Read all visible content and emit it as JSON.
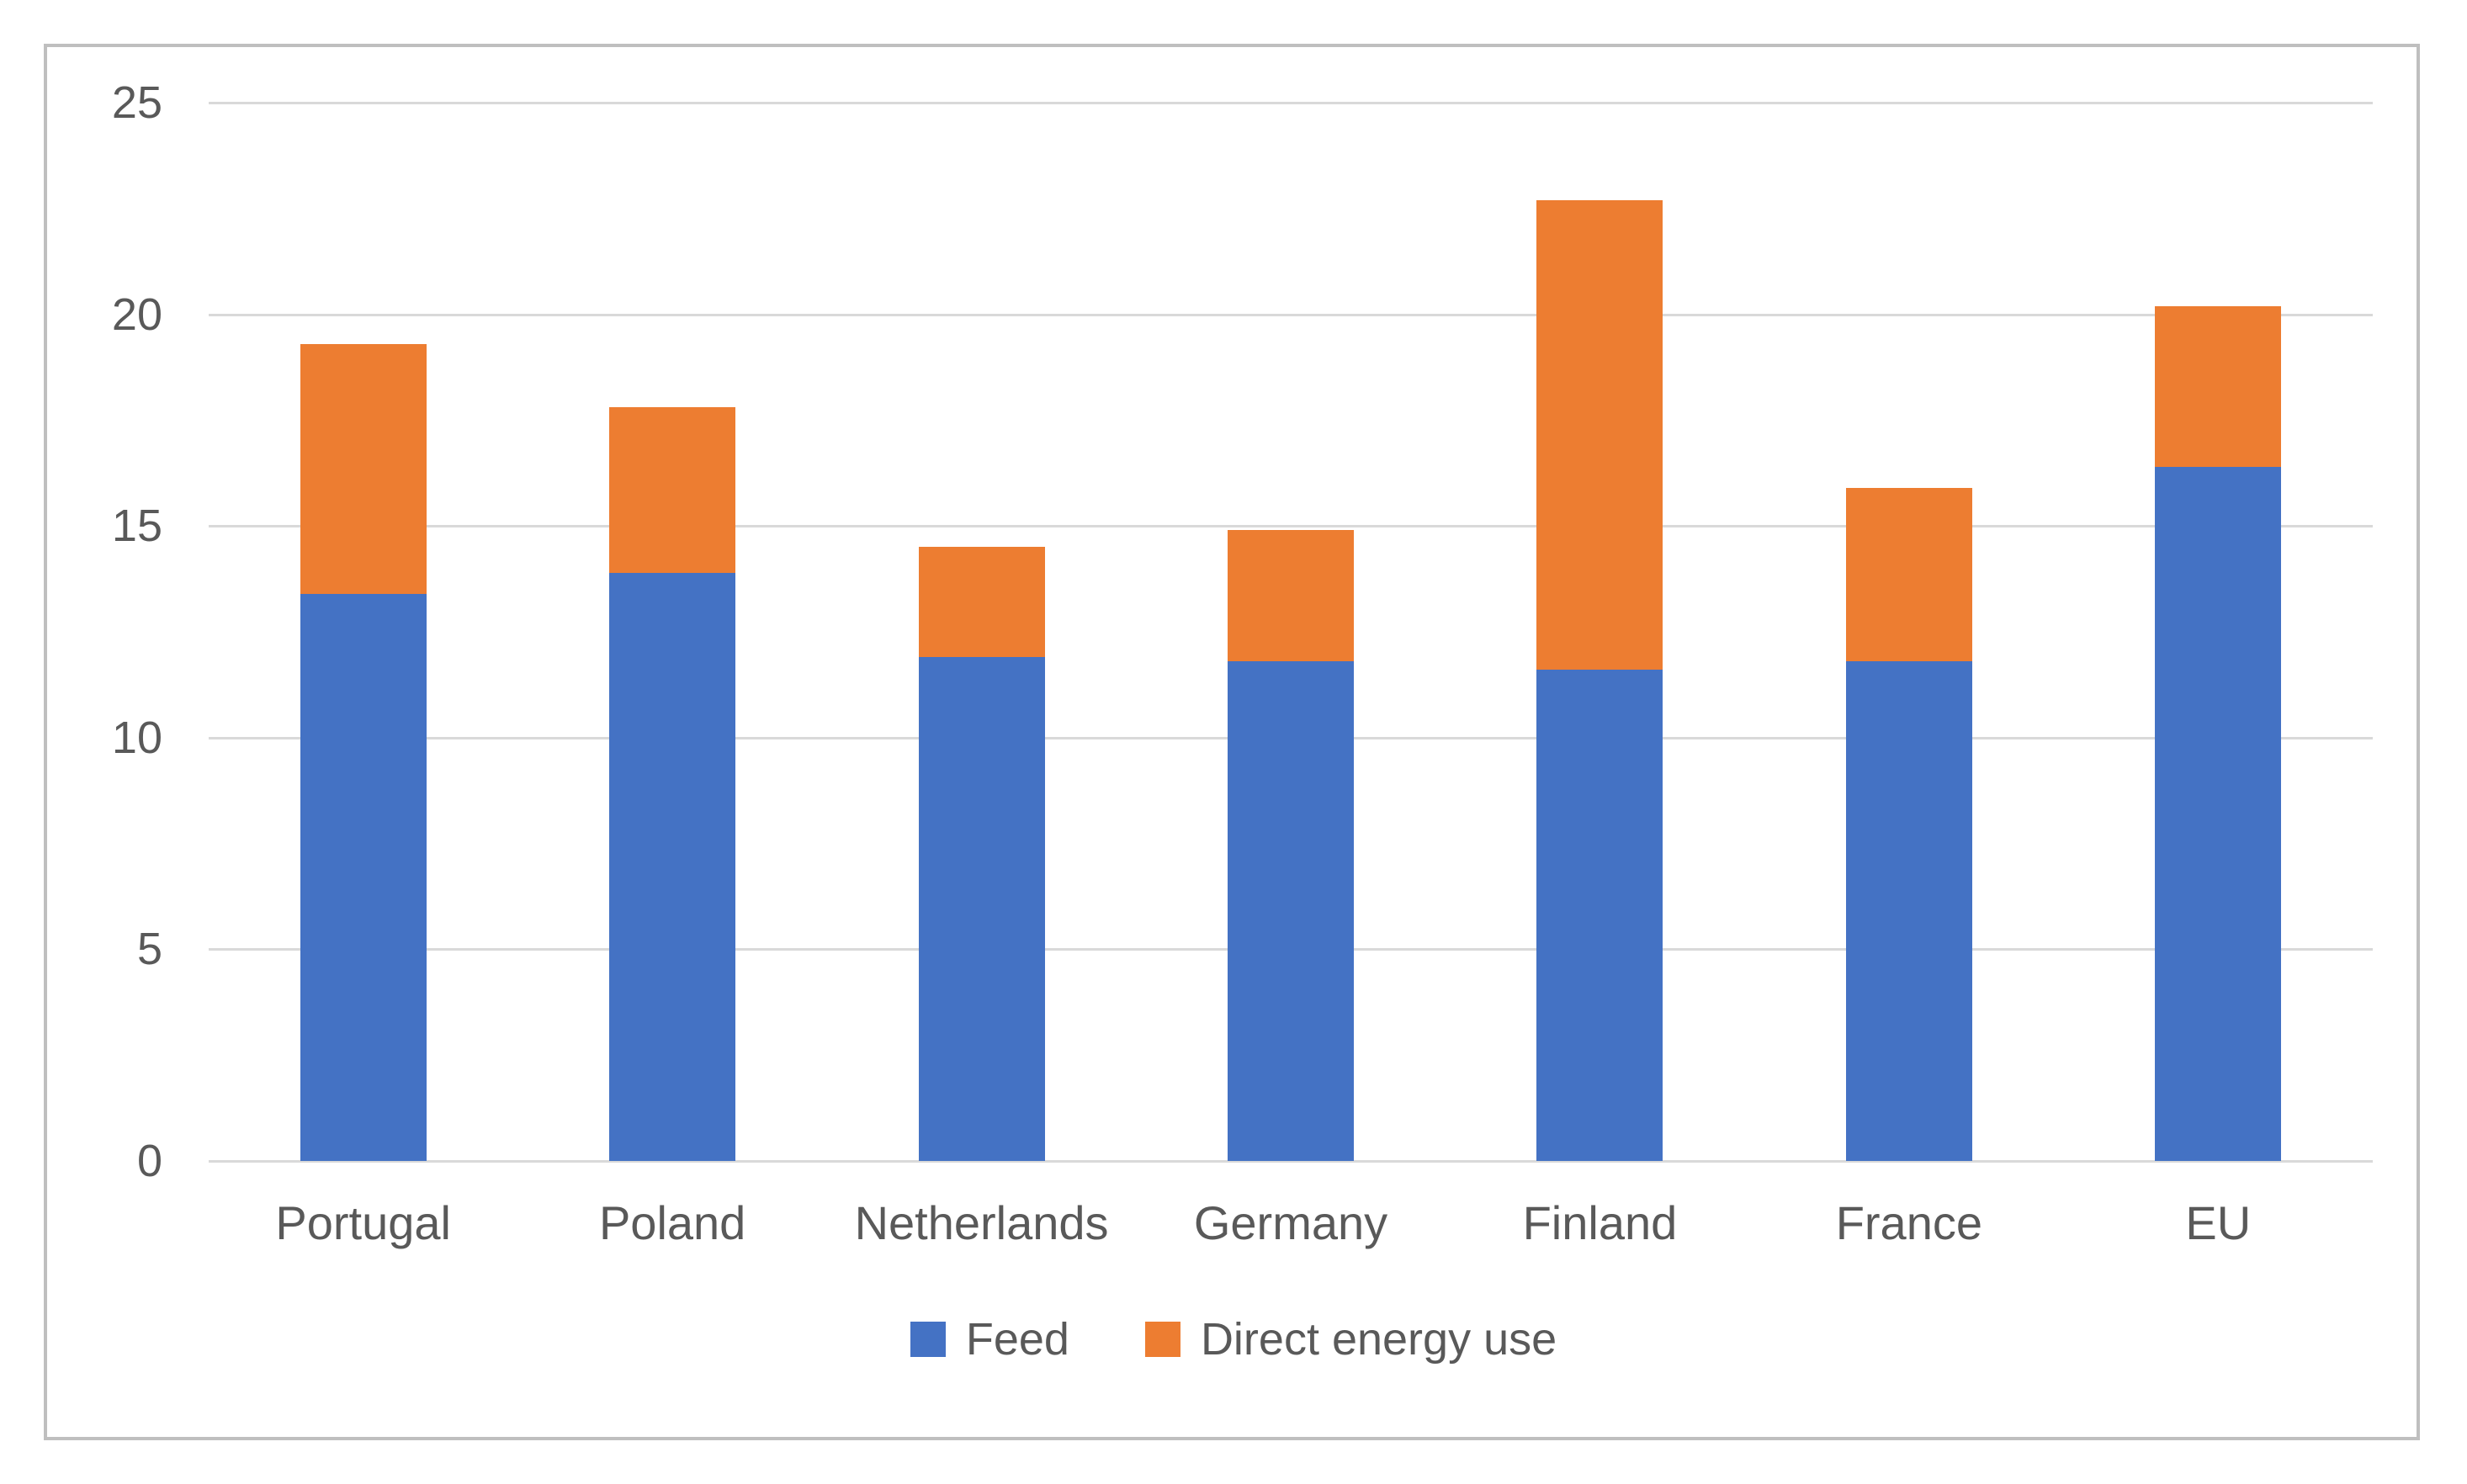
{
  "chart_data": {
    "type": "bar",
    "stacked": true,
    "title": "",
    "xlabel": "",
    "ylabel": "",
    "categories": [
      "Portugal",
      "Poland",
      "Netherlands",
      "Germany",
      "Finland",
      "France",
      "EU"
    ],
    "series": [
      {
        "name": "Feed",
        "color": "#4472C4",
        "values": [
          13.4,
          13.9,
          11.9,
          11.8,
          11.6,
          11.8,
          16.4
        ]
      },
      {
        "name": "Direct energy use",
        "color": "#ED7D31",
        "values": [
          5.9,
          3.9,
          2.6,
          3.1,
          11.1,
          4.1,
          3.8
        ]
      }
    ],
    "stack_totals": [
      19.3,
      17.8,
      14.5,
      14.9,
      22.7,
      15.9,
      20.2
    ],
    "ylim": [
      0,
      25
    ],
    "yticks": [
      0,
      5,
      10,
      15,
      20,
      25
    ],
    "grid": true,
    "legend_position": "bottom",
    "colors": {
      "gridline": "#D9D9D9",
      "axis_text": "#595959",
      "frame_border": "#BFBFBF",
      "background": "#FFFFFF"
    }
  }
}
